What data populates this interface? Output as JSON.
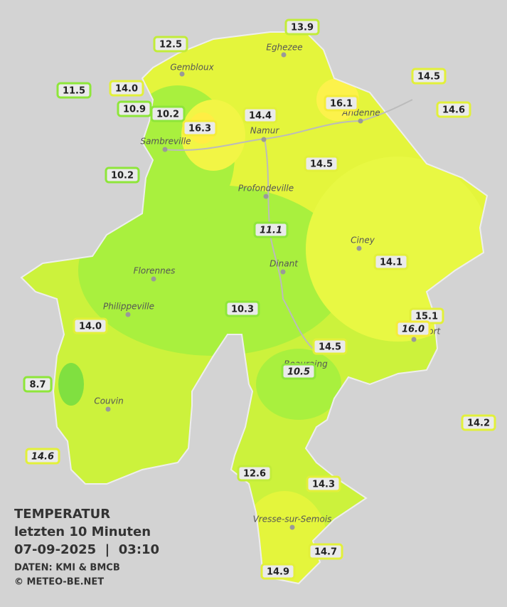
{
  "title": {
    "line1": "TEMPERATUR",
    "line2": "letzten 10 Minuten",
    "line3": "07-09-2025  |  03:10",
    "source": "DATEN: KMI & BMCB",
    "copyright": "© METEO-BE.NET"
  },
  "places": [
    "Eghezee",
    "Gembloux",
    "Andenne",
    "Namur",
    "Sambreville",
    "Profondeville",
    "Ciney",
    "Dinant",
    "Florennes",
    "Philippeville",
    "Rochefort",
    "Beauraing",
    "Couvin",
    "Vresse-sur-Semois"
  ],
  "stations": [
    {
      "value": 13.9,
      "label": "13.9"
    },
    {
      "value": 12.5,
      "label": "12.5"
    },
    {
      "value": 14.5,
      "label": "14.5"
    },
    {
      "value": 11.5,
      "label": "11.5"
    },
    {
      "value": 14,
      "label": "14.0"
    },
    {
      "value": 16.1,
      "label": "16.1"
    },
    {
      "value": 14.6,
      "label": "14.6"
    },
    {
      "value": 10.9,
      "label": "10.9"
    },
    {
      "value": 10.2,
      "label": "10.2"
    },
    {
      "value": 14.4,
      "label": "14.4"
    },
    {
      "value": 16.3,
      "label": "16.3"
    },
    {
      "value": 14.5,
      "label": "14.5"
    },
    {
      "value": 10.2,
      "label": "10.2"
    },
    {
      "value": 11.1,
      "label": "11.1"
    },
    {
      "value": 14.1,
      "label": "14.1"
    },
    {
      "value": 10.3,
      "label": "10.3"
    },
    {
      "value": 15.1,
      "label": "15.1"
    },
    {
      "value": 16,
      "label": "16.0"
    },
    {
      "value": 14,
      "label": "14.0"
    },
    {
      "value": 14.5,
      "label": "14.5"
    },
    {
      "value": 10.5,
      "label": "10.5"
    },
    {
      "value": 8.7,
      "label": "8.7"
    },
    {
      "value": 14.2,
      "label": "14.2"
    },
    {
      "value": 14.6,
      "label": "14.6"
    },
    {
      "value": 12.6,
      "label": "12.6"
    },
    {
      "value": 14.3,
      "label": "14.3"
    },
    {
      "value": 14.7,
      "label": "14.7"
    },
    {
      "value": 14.9,
      "label": "14.9"
    }
  ]
}
